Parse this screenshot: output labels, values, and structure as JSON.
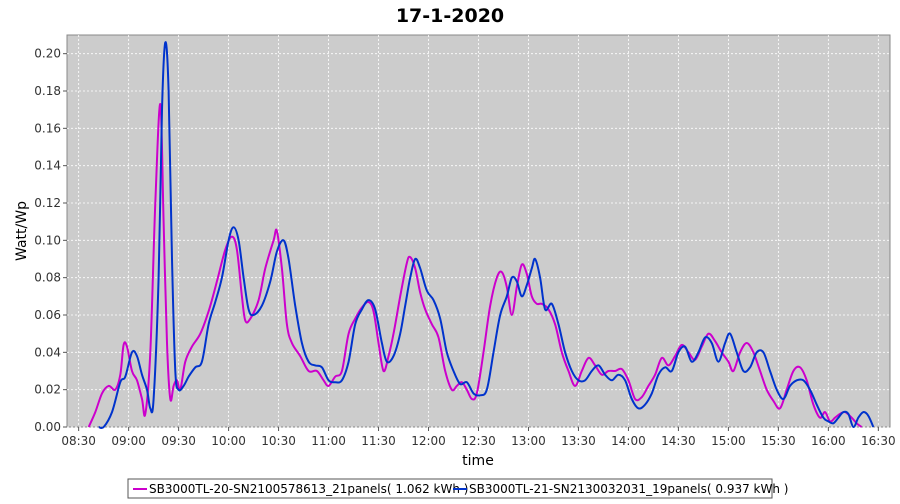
{
  "chart_data": {
    "type": "line",
    "title": "17-1-2020",
    "xlabel": "time",
    "ylabel": "Watt/Wp",
    "xlim": [
      "08:30",
      "16:30"
    ],
    "ylim": [
      0,
      0.21
    ],
    "x_ticks": [
      "08:30",
      "09:00",
      "09:30",
      "10:00",
      "10:30",
      "11:00",
      "11:30",
      "12:00",
      "12:30",
      "13:00",
      "13:30",
      "14:00",
      "14:30",
      "15:00",
      "15:30",
      "16:00",
      "16:30"
    ],
    "y_ticks": [
      "0.00",
      "0.02",
      "0.04",
      "0.06",
      "0.08",
      "0.10",
      "0.12",
      "0.14",
      "0.16",
      "0.18",
      "0.20"
    ],
    "grid": true,
    "legend_position": "bottom",
    "background_color": "#cccccc",
    "series": [
      {
        "name": "SB3000TL-20-SN2100578613_21panels( 1.062 kWh )",
        "color": "#cc00cc",
        "points": [
          [
            "08:36",
            0.0
          ],
          [
            "08:40",
            0.008
          ],
          [
            "08:44",
            0.018
          ],
          [
            "08:48",
            0.022
          ],
          [
            "08:52",
            0.02
          ],
          [
            "08:55",
            0.028
          ],
          [
            "08:57",
            0.044
          ],
          [
            "08:59",
            0.043
          ],
          [
            "09:02",
            0.03
          ],
          [
            "09:05",
            0.025
          ],
          [
            "09:08",
            0.015
          ],
          [
            "09:10",
            0.007
          ],
          [
            "09:13",
            0.04
          ],
          [
            "09:16",
            0.12
          ],
          [
            "09:19",
            0.173
          ],
          [
            "09:21",
            0.11
          ],
          [
            "09:23",
            0.045
          ],
          [
            "09:25",
            0.015
          ],
          [
            "09:27",
            0.022
          ],
          [
            "09:29",
            0.025
          ],
          [
            "09:31",
            0.02
          ],
          [
            "09:34",
            0.035
          ],
          [
            "09:38",
            0.043
          ],
          [
            "09:43",
            0.05
          ],
          [
            "09:48",
            0.062
          ],
          [
            "09:53",
            0.078
          ],
          [
            "09:58",
            0.095
          ],
          [
            "10:02",
            0.102
          ],
          [
            "10:05",
            0.095
          ],
          [
            "10:08",
            0.07
          ],
          [
            "10:10",
            0.057
          ],
          [
            "10:13",
            0.058
          ],
          [
            "10:18",
            0.068
          ],
          [
            "10:22",
            0.085
          ],
          [
            "10:27",
            0.1
          ],
          [
            "10:29",
            0.105
          ],
          [
            "10:32",
            0.085
          ],
          [
            "10:35",
            0.055
          ],
          [
            "10:38",
            0.045
          ],
          [
            "10:43",
            0.038
          ],
          [
            "10:48",
            0.03
          ],
          [
            "10:53",
            0.03
          ],
          [
            "10:57",
            0.025
          ],
          [
            "11:00",
            0.022
          ],
          [
            "11:04",
            0.027
          ],
          [
            "11:08",
            0.03
          ],
          [
            "11:12",
            0.05
          ],
          [
            "11:16",
            0.058
          ],
          [
            "11:20",
            0.064
          ],
          [
            "11:24",
            0.067
          ],
          [
            "11:27",
            0.062
          ],
          [
            "11:30",
            0.045
          ],
          [
            "11:33",
            0.03
          ],
          [
            "11:36",
            0.038
          ],
          [
            "11:39",
            0.05
          ],
          [
            "11:43",
            0.07
          ],
          [
            "11:47",
            0.088
          ],
          [
            "11:49",
            0.091
          ],
          [
            "11:52",
            0.085
          ],
          [
            "11:55",
            0.072
          ],
          [
            "11:58",
            0.063
          ],
          [
            "12:02",
            0.055
          ],
          [
            "12:06",
            0.048
          ],
          [
            "12:10",
            0.03
          ],
          [
            "12:14",
            0.02
          ],
          [
            "12:17",
            0.022
          ],
          [
            "12:20",
            0.024
          ],
          [
            "12:23",
            0.02
          ],
          [
            "12:26",
            0.015
          ],
          [
            "12:29",
            0.018
          ],
          [
            "12:33",
            0.04
          ],
          [
            "12:37",
            0.065
          ],
          [
            "12:41",
            0.08
          ],
          [
            "12:44",
            0.083
          ],
          [
            "12:47",
            0.075
          ],
          [
            "12:50",
            0.06
          ],
          [
            "12:53",
            0.075
          ],
          [
            "12:56",
            0.087
          ],
          [
            "12:59",
            0.082
          ],
          [
            "13:02",
            0.07
          ],
          [
            "13:05",
            0.066
          ],
          [
            "13:08",
            0.066
          ],
          [
            "13:12",
            0.063
          ],
          [
            "13:16",
            0.055
          ],
          [
            "13:20",
            0.04
          ],
          [
            "13:24",
            0.03
          ],
          [
            "13:28",
            0.022
          ],
          [
            "13:32",
            0.03
          ],
          [
            "13:36",
            0.037
          ],
          [
            "13:40",
            0.033
          ],
          [
            "13:44",
            0.028
          ],
          [
            "13:48",
            0.03
          ],
          [
            "13:52",
            0.03
          ],
          [
            "13:56",
            0.031
          ],
          [
            "14:00",
            0.025
          ],
          [
            "14:04",
            0.015
          ],
          [
            "14:08",
            0.016
          ],
          [
            "14:12",
            0.022
          ],
          [
            "14:16",
            0.028
          ],
          [
            "14:20",
            0.037
          ],
          [
            "14:24",
            0.033
          ],
          [
            "14:28",
            0.038
          ],
          [
            "14:32",
            0.044
          ],
          [
            "14:36",
            0.04
          ],
          [
            "14:40",
            0.036
          ],
          [
            "14:44",
            0.043
          ],
          [
            "14:48",
            0.05
          ],
          [
            "14:52",
            0.046
          ],
          [
            "14:56",
            0.04
          ],
          [
            "15:00",
            0.035
          ],
          [
            "15:03",
            0.03
          ],
          [
            "15:07",
            0.04
          ],
          [
            "15:11",
            0.045
          ],
          [
            "15:15",
            0.04
          ],
          [
            "15:19",
            0.03
          ],
          [
            "15:23",
            0.02
          ],
          [
            "15:27",
            0.014
          ],
          [
            "15:31",
            0.01
          ],
          [
            "15:35",
            0.02
          ],
          [
            "15:39",
            0.03
          ],
          [
            "15:43",
            0.032
          ],
          [
            "15:47",
            0.025
          ],
          [
            "15:51",
            0.012
          ],
          [
            "15:55",
            0.005
          ],
          [
            "15:58",
            0.008
          ],
          [
            "16:01",
            0.003
          ],
          [
            "16:04",
            0.005
          ],
          [
            "16:07",
            0.007
          ],
          [
            "16:10",
            0.008
          ],
          [
            "16:14",
            0.005
          ],
          [
            "16:17",
            0.002
          ],
          [
            "16:20",
            0.0
          ]
        ]
      },
      {
        "name": "SB3000TL-21-SN2130032031_19panels( 0.937 kWh )",
        "color": "#0033cc",
        "points": [
          [
            "08:42",
            0.0
          ],
          [
            "08:45",
            0.0
          ],
          [
            "08:50",
            0.008
          ],
          [
            "08:55",
            0.024
          ],
          [
            "08:58",
            0.027
          ],
          [
            "09:02",
            0.04
          ],
          [
            "09:05",
            0.038
          ],
          [
            "09:08",
            0.028
          ],
          [
            "09:11",
            0.02
          ],
          [
            "09:13",
            0.01
          ],
          [
            "09:15",
            0.015
          ],
          [
            "09:18",
            0.08
          ],
          [
            "09:20",
            0.17
          ],
          [
            "09:22",
            0.206
          ],
          [
            "09:24",
            0.18
          ],
          [
            "09:26",
            0.09
          ],
          [
            "09:28",
            0.03
          ],
          [
            "09:30",
            0.02
          ],
          [
            "09:33",
            0.022
          ],
          [
            "09:36",
            0.027
          ],
          [
            "09:40",
            0.032
          ],
          [
            "09:44",
            0.035
          ],
          [
            "09:48",
            0.055
          ],
          [
            "09:52",
            0.067
          ],
          [
            "09:56",
            0.08
          ],
          [
            "10:00",
            0.1
          ],
          [
            "10:03",
            0.107
          ],
          [
            "10:06",
            0.1
          ],
          [
            "10:09",
            0.08
          ],
          [
            "10:12",
            0.063
          ],
          [
            "10:15",
            0.06
          ],
          [
            "10:20",
            0.065
          ],
          [
            "10:25",
            0.078
          ],
          [
            "10:29",
            0.094
          ],
          [
            "10:33",
            0.1
          ],
          [
            "10:36",
            0.09
          ],
          [
            "10:40",
            0.065
          ],
          [
            "10:44",
            0.045
          ],
          [
            "10:48",
            0.035
          ],
          [
            "10:52",
            0.033
          ],
          [
            "10:56",
            0.032
          ],
          [
            "11:00",
            0.025
          ],
          [
            "11:04",
            0.024
          ],
          [
            "11:08",
            0.025
          ],
          [
            "11:12",
            0.035
          ],
          [
            "11:16",
            0.055
          ],
          [
            "11:20",
            0.063
          ],
          [
            "11:24",
            0.068
          ],
          [
            "11:28",
            0.063
          ],
          [
            "11:32",
            0.045
          ],
          [
            "11:35",
            0.035
          ],
          [
            "11:39",
            0.038
          ],
          [
            "11:43",
            0.05
          ],
          [
            "11:46",
            0.065
          ],
          [
            "11:49",
            0.08
          ],
          [
            "11:52",
            0.09
          ],
          [
            "11:55",
            0.085
          ],
          [
            "11:59",
            0.073
          ],
          [
            "12:03",
            0.068
          ],
          [
            "12:07",
            0.058
          ],
          [
            "12:11",
            0.04
          ],
          [
            "12:15",
            0.03
          ],
          [
            "12:19",
            0.023
          ],
          [
            "12:23",
            0.024
          ],
          [
            "12:27",
            0.018
          ],
          [
            "12:31",
            0.017
          ],
          [
            "12:35",
            0.02
          ],
          [
            "12:39",
            0.04
          ],
          [
            "12:43",
            0.06
          ],
          [
            "12:47",
            0.07
          ],
          [
            "12:50",
            0.08
          ],
          [
            "12:53",
            0.078
          ],
          [
            "12:56",
            0.07
          ],
          [
            "12:59",
            0.076
          ],
          [
            "13:02",
            0.085
          ],
          [
            "13:04",
            0.09
          ],
          [
            "13:07",
            0.08
          ],
          [
            "13:10",
            0.063
          ],
          [
            "13:14",
            0.066
          ],
          [
            "13:18",
            0.055
          ],
          [
            "13:22",
            0.04
          ],
          [
            "13:26",
            0.03
          ],
          [
            "13:30",
            0.025
          ],
          [
            "13:34",
            0.025
          ],
          [
            "13:38",
            0.03
          ],
          [
            "13:42",
            0.033
          ],
          [
            "13:46",
            0.028
          ],
          [
            "13:50",
            0.025
          ],
          [
            "13:54",
            0.028
          ],
          [
            "13:58",
            0.025
          ],
          [
            "14:02",
            0.015
          ],
          [
            "14:06",
            0.01
          ],
          [
            "14:10",
            0.012
          ],
          [
            "14:14",
            0.018
          ],
          [
            "14:18",
            0.028
          ],
          [
            "14:22",
            0.032
          ],
          [
            "14:26",
            0.03
          ],
          [
            "14:30",
            0.04
          ],
          [
            "14:34",
            0.043
          ],
          [
            "14:38",
            0.035
          ],
          [
            "14:42",
            0.04
          ],
          [
            "14:46",
            0.048
          ],
          [
            "14:50",
            0.045
          ],
          [
            "14:54",
            0.035
          ],
          [
            "14:58",
            0.045
          ],
          [
            "15:01",
            0.05
          ],
          [
            "15:05",
            0.04
          ],
          [
            "15:09",
            0.03
          ],
          [
            "15:13",
            0.032
          ],
          [
            "15:17",
            0.04
          ],
          [
            "15:21",
            0.04
          ],
          [
            "15:25",
            0.03
          ],
          [
            "15:29",
            0.02
          ],
          [
            "15:33",
            0.015
          ],
          [
            "15:37",
            0.022
          ],
          [
            "15:41",
            0.025
          ],
          [
            "15:45",
            0.025
          ],
          [
            "15:49",
            0.02
          ],
          [
            "15:53",
            0.012
          ],
          [
            "15:57",
            0.005
          ],
          [
            "16:00",
            0.003
          ],
          [
            "16:03",
            0.002
          ],
          [
            "16:06",
            0.005
          ],
          [
            "16:09",
            0.008
          ],
          [
            "16:12",
            0.007
          ],
          [
            "16:15",
            0.0
          ],
          [
            "16:18",
            0.005
          ],
          [
            "16:21",
            0.008
          ],
          [
            "16:24",
            0.006
          ],
          [
            "16:27",
            0.0
          ]
        ]
      }
    ]
  }
}
